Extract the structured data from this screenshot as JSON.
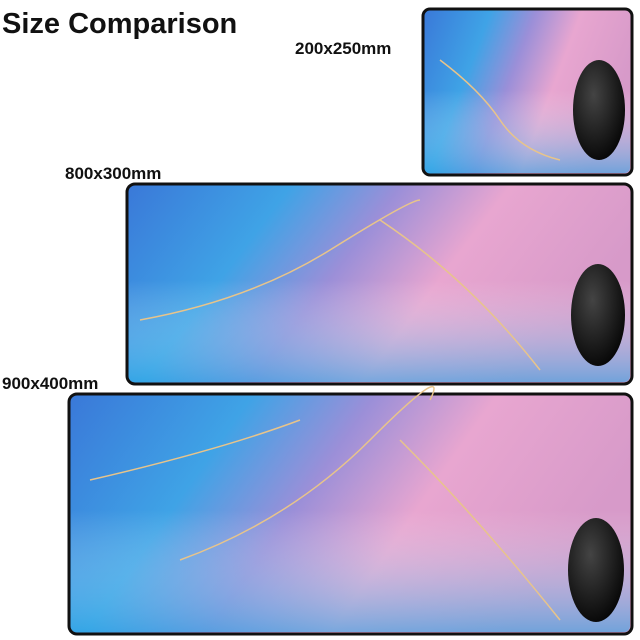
{
  "title": "Size Comparison",
  "pads": [
    {
      "label": "200x250mm"
    },
    {
      "label": "800x300mm"
    },
    {
      "label": "900x400mm"
    }
  ]
}
